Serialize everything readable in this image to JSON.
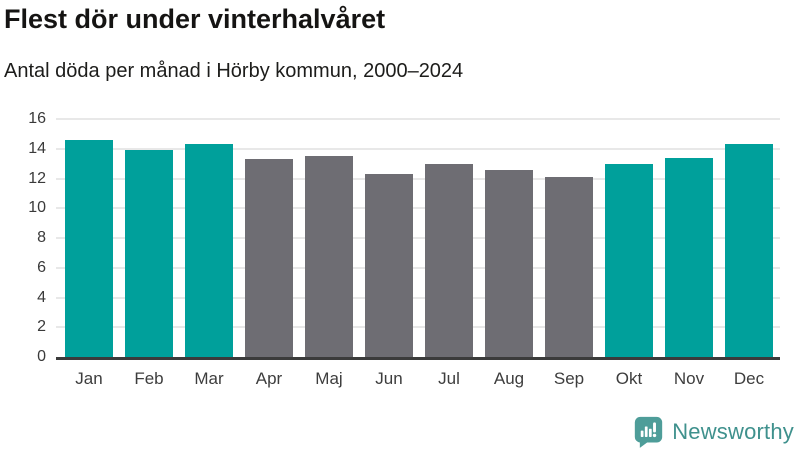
{
  "header": {
    "title": "Flest dör under vinterhalvåret",
    "subtitle": "Antal döda per månad i Hörby kommun, 2000–2024"
  },
  "chart_data": {
    "type": "bar",
    "title": "Flest dör under vinterhalvåret",
    "subtitle": "Antal döda per månad i Hörby kommun, 2000–2024",
    "categories": [
      "Jan",
      "Feb",
      "Mar",
      "Apr",
      "Maj",
      "Jun",
      "Jul",
      "Aug",
      "Sep",
      "Okt",
      "Nov",
      "Dec"
    ],
    "values": [
      14.6,
      13.9,
      14.3,
      13.3,
      13.5,
      12.3,
      13.0,
      12.6,
      12.1,
      13.0,
      13.4,
      14.3
    ],
    "highlighted_categories": [
      "Jan",
      "Feb",
      "Mar",
      "Okt",
      "Nov",
      "Dec"
    ],
    "xlabel": "",
    "ylabel": "",
    "ylim": [
      0,
      16
    ],
    "yticks": [
      0,
      2,
      4,
      6,
      8,
      10,
      12,
      14,
      16
    ],
    "grid": true,
    "legend_position": "none",
    "colors": {
      "highlight_bar": "#00a09b",
      "default_bar": "#6e6d73",
      "gridline": "#e8e8e8",
      "axis_line": "#3b3b3b",
      "tick_label": "#3a3a3a"
    }
  },
  "brand": {
    "name": "Newsworthy",
    "logo_icon": "newsworthy-speech-bubble-bar-chart-icon",
    "logo_color": "#4e9d99",
    "logo_glyph_color": "#ffffff",
    "text_color": "#3f918d"
  }
}
